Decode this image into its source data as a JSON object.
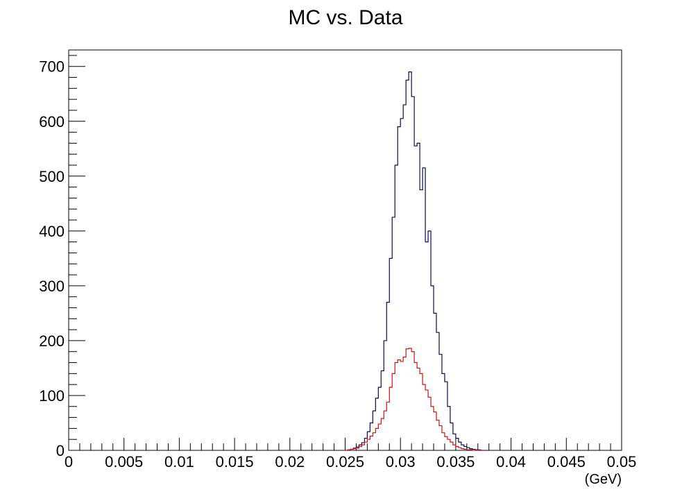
{
  "chart_data": {
    "type": "histogram",
    "title": "MC vs. Data",
    "xlabel": "(GeV)",
    "ylabel": "",
    "xlim": [
      0,
      0.05
    ],
    "ylim": [
      0,
      730
    ],
    "x_ticks": [
      0,
      0.005,
      0.01,
      0.015,
      0.02,
      0.025,
      0.03,
      0.035,
      0.04,
      0.045,
      0.05
    ],
    "x_tick_labels": [
      "0",
      "0.005",
      "0.01",
      "0.015",
      "0.02",
      "0.025",
      "0.03",
      "0.035",
      "0.04",
      "0.045",
      "0.05"
    ],
    "y_ticks": [
      0,
      100,
      200,
      300,
      400,
      500,
      600,
      700
    ],
    "y_tick_labels": [
      "0",
      "100",
      "200",
      "300",
      "400",
      "500",
      "600",
      "700"
    ],
    "bin_edges_start": 0.025,
    "bin_width": 0.00025,
    "legend": "none",
    "grid": false,
    "series": [
      {
        "color": "#0b0b4d",
        "values": [
          0,
          1,
          2,
          4,
          6,
          10,
          14,
          22,
          34,
          50,
          72,
          95,
          115,
          145,
          200,
          270,
          350,
          425,
          520,
          590,
          605,
          630,
          675,
          690,
          645,
          555,
          560,
          475,
          515,
          380,
          400,
          300,
          250,
          215,
          175,
          140,
          125,
          80,
          50,
          30,
          22,
          15,
          10,
          7,
          5,
          3,
          2,
          1,
          1,
          0
        ]
      },
      {
        "color": "#cc1111",
        "values": [
          0,
          1,
          2,
          3,
          4,
          7,
          10,
          15,
          20,
          26,
          32,
          40,
          48,
          58,
          72,
          88,
          115,
          140,
          160,
          165,
          162,
          170,
          185,
          186,
          180,
          160,
          150,
          140,
          120,
          110,
          97,
          80,
          70,
          55,
          45,
          32,
          25,
          20,
          15,
          10,
          7,
          5,
          3,
          2,
          1,
          1,
          0,
          0,
          0,
          0
        ]
      }
    ]
  }
}
